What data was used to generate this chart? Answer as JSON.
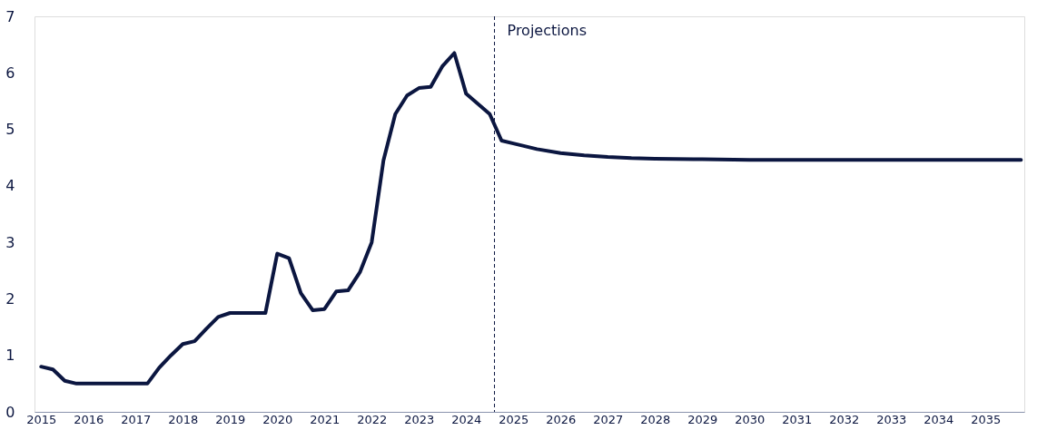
{
  "chart_data": {
    "type": "line",
    "x": [
      2015.0,
      2015.25,
      2015.5,
      2015.75,
      2016.0,
      2016.25,
      2016.5,
      2016.75,
      2017.0,
      2017.25,
      2017.5,
      2017.75,
      2018.0,
      2018.25,
      2018.5,
      2018.75,
      2019.0,
      2019.25,
      2019.5,
      2019.75,
      2020.0,
      2020.25,
      2020.5,
      2020.75,
      2021.0,
      2021.25,
      2021.5,
      2021.75,
      2022.0,
      2022.25,
      2022.5,
      2022.75,
      2023.0,
      2023.25,
      2023.5,
      2023.75,
      2024.0,
      2024.25,
      2024.5,
      2024.75,
      2025.0,
      2025.5,
      2026.0,
      2026.5,
      2027.0,
      2027.5,
      2028.0,
      2029.0,
      2030.0,
      2031.0,
      2032.0,
      2033.0,
      2034.0,
      2035.0,
      2035.75
    ],
    "series": [
      {
        "color": "#0b1640",
        "values": [
          0.8,
          0.75,
          0.55,
          0.5,
          0.5,
          0.5,
          0.5,
          0.5,
          0.5,
          0.5,
          0.78,
          1.0,
          1.2,
          1.25,
          1.47,
          1.68,
          1.75,
          1.75,
          1.75,
          1.75,
          2.8,
          2.72,
          2.1,
          1.8,
          1.82,
          2.13,
          2.15,
          2.47,
          3.0,
          4.45,
          5.27,
          5.6,
          5.73,
          5.75,
          6.12,
          6.35,
          5.63,
          5.45,
          5.27,
          4.8,
          4.75,
          4.65,
          4.58,
          4.54,
          4.51,
          4.49,
          4.48,
          4.47,
          4.46,
          4.46,
          4.46,
          4.46,
          4.46,
          4.46,
          4.46
        ]
      }
    ],
    "xlim": [
      2014.86,
      2035.82
    ],
    "xticks": [
      2015,
      2016,
      2017,
      2018,
      2019,
      2020,
      2021,
      2022,
      2023,
      2024,
      2025,
      2026,
      2027,
      2028,
      2029,
      2030,
      2031,
      2032,
      2033,
      2034,
      2035
    ],
    "ylim": [
      0,
      7
    ],
    "yticks": [
      0,
      1,
      2,
      3,
      4,
      5,
      6,
      7
    ],
    "grid": false,
    "marker": "none",
    "line_style": "solid",
    "ref_lines": [
      {
        "axis": "x",
        "value": 2024.6,
        "label": "Projections",
        "color": "#0b1640",
        "line_style": "dashed"
      }
    ]
  }
}
